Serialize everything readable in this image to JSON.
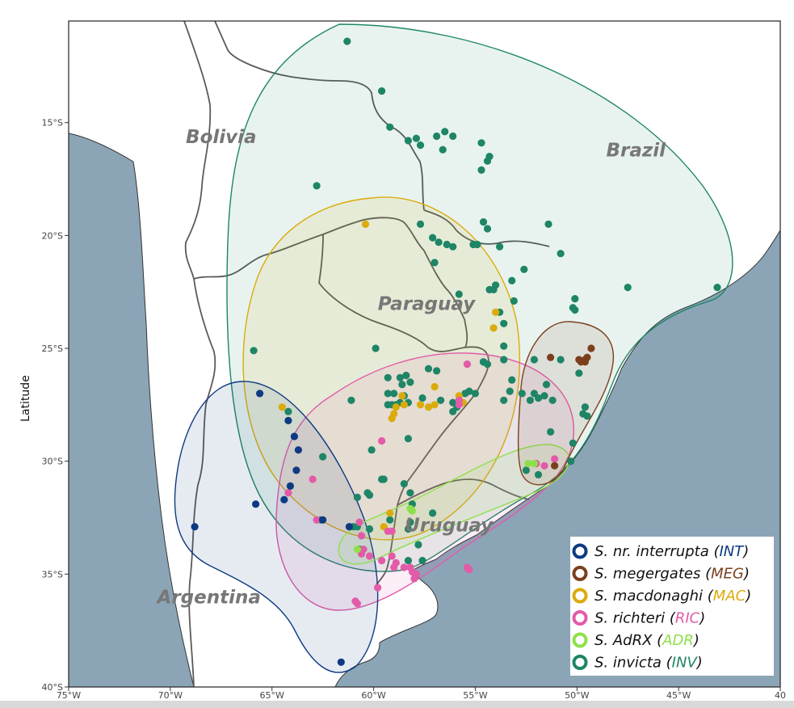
{
  "axis": {
    "ylabel": "Latitude",
    "x_ticks": [
      {
        "lon": -75,
        "label": "75°W"
      },
      {
        "lon": -70,
        "label": "70°W"
      },
      {
        "lon": -65,
        "label": "65°W"
      },
      {
        "lon": -60,
        "label": "60°W"
      },
      {
        "lon": -55,
        "label": "55°W"
      },
      {
        "lon": -50,
        "label": "50°W"
      },
      {
        "lon": -45,
        "label": "45°W"
      },
      {
        "lon": -40,
        "label": "40"
      }
    ],
    "y_ticks": [
      {
        "lat": -15,
        "label": "15°S"
      },
      {
        "lat": -20,
        "label": "20°S"
      },
      {
        "lat": -25,
        "label": "25°S"
      },
      {
        "lat": -30,
        "label": "30°S"
      },
      {
        "lat": -35,
        "label": "35°S"
      },
      {
        "lat": -40,
        "label": "40°S"
      }
    ],
    "lon_range": [
      -75,
      -40
    ],
    "lat_range": [
      -40,
      -10.5
    ]
  },
  "countries": [
    {
      "name": "Bolivia",
      "lon": -67.5,
      "lat": -15.9
    },
    {
      "name": "Brazil",
      "lon": -47.1,
      "lat": -16.5
    },
    {
      "name": "Paraguay",
      "lon": -57.4,
      "lat": -23.3
    },
    {
      "name": "Uruguay",
      "lon": -56.3,
      "lat": -33.1
    },
    {
      "name": "Argentina",
      "lon": -68.1,
      "lat": -36.3
    }
  ],
  "colors": {
    "ocean": "#8ba5b7",
    "land": "#ffffff",
    "border": "#5a5a5a",
    "INT": "#0d3a82",
    "MEG": "#7b3f1c",
    "MAC": "#dbab0c",
    "RIC": "#e25ba8",
    "ADR": "#8ee04a",
    "INV": "#1e8566"
  },
  "legend": [
    {
      "code": "INT",
      "prefix": "S. nr. interrupta (",
      "abbr": "INT",
      "suffix": ")"
    },
    {
      "code": "MEG",
      "prefix": "S. megergates (",
      "abbr": "MEG",
      "suffix": ")"
    },
    {
      "code": "MAC",
      "prefix": "S. macdonaghi (",
      "abbr": "MAC",
      "suffix": ")"
    },
    {
      "code": "RIC",
      "prefix": "S. richteri (",
      "abbr": "RIC",
      "suffix": ")"
    },
    {
      "code": "ADR",
      "prefix": "S. AdRX (",
      "abbr": "ADR",
      "suffix": ")"
    },
    {
      "code": "INV",
      "prefix": "S. invicta (",
      "abbr": "INV",
      "suffix": ")"
    }
  ],
  "points": {
    "INV": [
      [
        -61.3,
        -11.4
      ],
      [
        -59.6,
        -13.6
      ],
      [
        -59.2,
        -15.2
      ],
      [
        -58.3,
        -15.8
      ],
      [
        -57.9,
        -15.7
      ],
      [
        -57.7,
        -16.0
      ],
      [
        -56.9,
        -15.6
      ],
      [
        -56.5,
        -15.4
      ],
      [
        -56.1,
        -15.6
      ],
      [
        -56.6,
        -16.2
      ],
      [
        -54.7,
        -15.9
      ],
      [
        -54.3,
        -16.5
      ],
      [
        -54.4,
        -16.7
      ],
      [
        -54.7,
        -17.1
      ],
      [
        -62.8,
        -17.8
      ],
      [
        -57.7,
        -19.5
      ],
      [
        -54.6,
        -19.4
      ],
      [
        -54.4,
        -19.7
      ],
      [
        -57.1,
        -20.1
      ],
      [
        -56.8,
        -20.3
      ],
      [
        -56.4,
        -20.4
      ],
      [
        -56.1,
        -20.5
      ],
      [
        -55.1,
        -20.4
      ],
      [
        -54.9,
        -20.4
      ],
      [
        -53.8,
        -20.5
      ],
      [
        -51.4,
        -19.5
      ],
      [
        -50.8,
        -20.8
      ],
      [
        -57.0,
        -21.2
      ],
      [
        -52.6,
        -21.5
      ],
      [
        -53.2,
        -22.0
      ],
      [
        -54.0,
        -22.2
      ],
      [
        -53.1,
        -22.9
      ],
      [
        -55.8,
        -22.6
      ],
      [
        -54.3,
        -22.4
      ],
      [
        -54.1,
        -22.4
      ],
      [
        -53.8,
        -23.4
      ],
      [
        -53.6,
        -23.9
      ],
      [
        -50.1,
        -22.8
      ],
      [
        -50.2,
        -23.2
      ],
      [
        -50.1,
        -23.3
      ],
      [
        -47.5,
        -22.3
      ],
      [
        -43.1,
        -22.3
      ],
      [
        -65.9,
        -25.1
      ],
      [
        -59.9,
        -25.0
      ],
      [
        -57.3,
        -25.9
      ],
      [
        -53.6,
        -24.9
      ],
      [
        -54.6,
        -25.6
      ],
      [
        -53.6,
        -25.5
      ],
      [
        -52.1,
        -25.5
      ],
      [
        -50.8,
        -25.5
      ],
      [
        -49.9,
        -26.1
      ],
      [
        -53.2,
        -26.4
      ],
      [
        -53.3,
        -26.9
      ],
      [
        -52.7,
        -27.0
      ],
      [
        -52.1,
        -27.0
      ],
      [
        -51.5,
        -26.6
      ],
      [
        -51.6,
        -27.1
      ],
      [
        -51.9,
        -27.2
      ],
      [
        -51.2,
        -27.3
      ],
      [
        -53.6,
        -27.3
      ],
      [
        -52.3,
        -27.3
      ],
      [
        -49.6,
        -27.6
      ],
      [
        -49.7,
        -27.9
      ],
      [
        -49.5,
        -28.0
      ],
      [
        -51.3,
        -28.7
      ],
      [
        -58.2,
        -26.5
      ],
      [
        -58.4,
        -26.2
      ],
      [
        -59.3,
        -26.3
      ],
      [
        -58.7,
        -26.3
      ],
      [
        -58.6,
        -26.6
      ],
      [
        -59.0,
        -27.0
      ],
      [
        -59.3,
        -27.0
      ],
      [
        -58.5,
        -27.1
      ],
      [
        -58.9,
        -27.5
      ],
      [
        -59.3,
        -27.5
      ],
      [
        -59.1,
        -27.5
      ],
      [
        -58.7,
        -27.4
      ],
      [
        -58.3,
        -27.4
      ],
      [
        -57.6,
        -27.2
      ],
      [
        -56.7,
        -27.3
      ],
      [
        -56.1,
        -27.4
      ],
      [
        -55.3,
        -26.9
      ],
      [
        -55.0,
        -27.0
      ],
      [
        -56.9,
        -26.0
      ],
      [
        -55.5,
        -27.0
      ],
      [
        -55.9,
        -27.6
      ],
      [
        -56.1,
        -27.8
      ],
      [
        -54.6,
        -25.6
      ],
      [
        -54.4,
        -25.7
      ],
      [
        -61.1,
        -27.3
      ],
      [
        -60.1,
        -29.5
      ],
      [
        -58.3,
        -29.0
      ],
      [
        -59.5,
        -30.8
      ],
      [
        -59.6,
        -30.8
      ],
      [
        -60.3,
        -31.4
      ],
      [
        -60.2,
        -31.5
      ],
      [
        -60.8,
        -31.6
      ],
      [
        -58.5,
        -31.0
      ],
      [
        -62.5,
        -29.8
      ],
      [
        -64.2,
        -27.8
      ],
      [
        -58.2,
        -31.4
      ],
      [
        -58.1,
        -31.9
      ],
      [
        -59.2,
        -32.6
      ],
      [
        -58.2,
        -32.7
      ],
      [
        -58.3,
        -33.0
      ],
      [
        -61.0,
        -32.9
      ],
      [
        -60.8,
        -32.9
      ],
      [
        -60.2,
        -33.0
      ],
      [
        -60.7,
        -33.9
      ],
      [
        -57.1,
        -32.3
      ],
      [
        -57.8,
        -33.7
      ],
      [
        -58.3,
        -34.4
      ],
      [
        -57.6,
        -34.4
      ],
      [
        -52.5,
        -30.4
      ],
      [
        -51.9,
        -30.6
      ],
      [
        -50.3,
        -30.0
      ],
      [
        -50.2,
        -29.2
      ],
      [
        -62.6,
        -32.6
      ]
    ],
    "MAC": [
      [
        -60.4,
        -19.5
      ],
      [
        -54.0,
        -23.4
      ],
      [
        -54.1,
        -24.1
      ],
      [
        -64.5,
        -27.6
      ],
      [
        -58.6,
        -27.1
      ],
      [
        -58.9,
        -27.6
      ],
      [
        -59.0,
        -27.9
      ],
      [
        -59.1,
        -28.1
      ],
      [
        -58.5,
        -27.5
      ],
      [
        -57.7,
        -27.5
      ],
      [
        -57.3,
        -27.6
      ],
      [
        -57.0,
        -27.5
      ],
      [
        -57.0,
        -26.7
      ],
      [
        -55.8,
        -27.1
      ],
      [
        -55.6,
        -27.4
      ],
      [
        -59.2,
        -32.3
      ],
      [
        -59.5,
        -32.9
      ]
    ],
    "RIC": [
      [
        -55.4,
        -25.7
      ],
      [
        -55.8,
        -27.3
      ],
      [
        -55.8,
        -27.5
      ],
      [
        -59.6,
        -29.1
      ],
      [
        -63.0,
        -30.8
      ],
      [
        -64.2,
        -31.4
      ],
      [
        -62.8,
        -32.6
      ],
      [
        -60.7,
        -32.7
      ],
      [
        -60.6,
        -33.3
      ],
      [
        -59.3,
        -33.1
      ],
      [
        -59.1,
        -33.1
      ],
      [
        -60.5,
        -33.9
      ],
      [
        -60.6,
        -34.1
      ],
      [
        -60.2,
        -34.2
      ],
      [
        -59.6,
        -34.4
      ],
      [
        -59.1,
        -34.2
      ],
      [
        -58.9,
        -34.5
      ],
      [
        -59.0,
        -34.7
      ],
      [
        -58.5,
        -34.7
      ],
      [
        -58.2,
        -34.7
      ],
      [
        -58.1,
        -34.9
      ],
      [
        -57.9,
        -35.0
      ],
      [
        -58.0,
        -35.2
      ],
      [
        -55.4,
        -34.7
      ],
      [
        -55.3,
        -34.8
      ],
      [
        -60.9,
        -36.2
      ],
      [
        -60.8,
        -36.3
      ],
      [
        -59.8,
        -35.6
      ],
      [
        -52.0,
        -30.1
      ],
      [
        -51.6,
        -30.2
      ],
      [
        -51.1,
        -29.9
      ]
    ],
    "ADR": [
      [
        -52.4,
        -30.1
      ],
      [
        -52.1,
        -30.1
      ],
      [
        -58.2,
        -32.1
      ],
      [
        -58.1,
        -32.2
      ],
      [
        -60.8,
        -33.9
      ]
    ],
    "INT": [
      [
        -68.8,
        -32.9
      ],
      [
        -65.8,
        -31.9
      ],
      [
        -65.6,
        -27.0
      ],
      [
        -64.2,
        -28.2
      ],
      [
        -63.9,
        -28.9
      ],
      [
        -63.7,
        -29.5
      ],
      [
        -63.8,
        -30.4
      ],
      [
        -64.1,
        -31.1
      ],
      [
        -64.4,
        -31.7
      ],
      [
        -62.5,
        -32.6
      ],
      [
        -61.2,
        -32.9
      ],
      [
        -61.6,
        -38.9
      ]
    ],
    "MEG": [
      [
        -51.3,
        -25.4
      ],
      [
        -49.3,
        -25.0
      ],
      [
        -49.6,
        -25.5
      ],
      [
        -49.9,
        -25.5
      ],
      [
        -49.5,
        -25.4
      ],
      [
        -49.6,
        -25.6
      ],
      [
        -49.8,
        -25.6
      ],
      [
        -51.1,
        -30.2
      ]
    ]
  }
}
